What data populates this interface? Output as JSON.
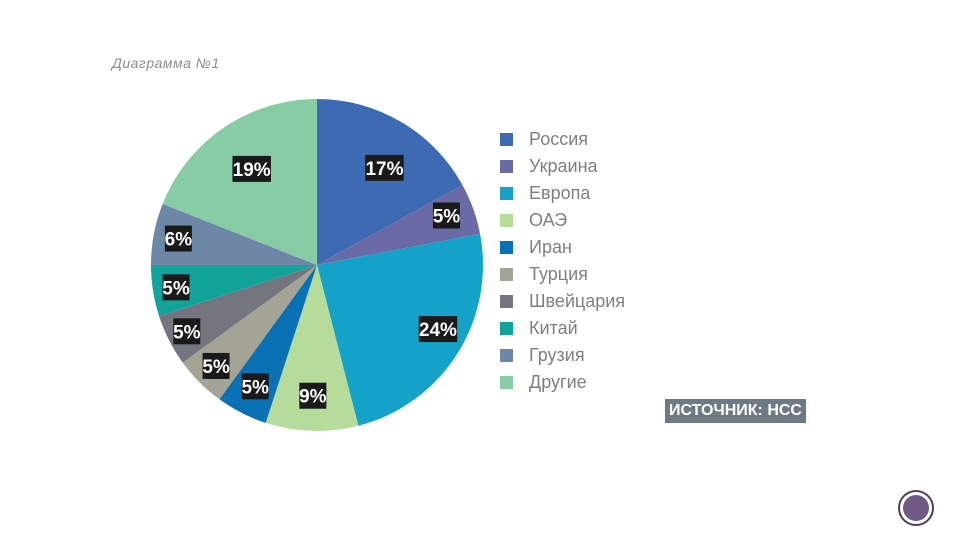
{
  "caption": "Диаграмма №1",
  "source_label": "ИСТОЧНИК: НСС",
  "chart_data": {
    "type": "pie",
    "categories": [
      "Россия",
      "Украина",
      "Европа",
      "ОАЭ",
      "Иран",
      "Турция",
      "Швейцария",
      "Китай",
      "Грузия",
      "Другие"
    ],
    "values": [
      17,
      5,
      24,
      9,
      5,
      5,
      5,
      5,
      6,
      19
    ],
    "labels": [
      "17%",
      "5%",
      "24%",
      "9%",
      "5%",
      "5%",
      "5%",
      "5%",
      "6%",
      "19%"
    ],
    "colors": [
      "#3c6bb4",
      "#6a6ba6",
      "#14a2c8",
      "#b6dc9c",
      "#0a72b4",
      "#a3a396",
      "#75757f",
      "#12a49a",
      "#6e87a6",
      "#88cca6"
    ],
    "start_angle": "12 o'clock",
    "direction": "clockwise",
    "legend_position": "right"
  },
  "decor": {
    "nav_circle_icon": "slide-nav-circle-icon"
  }
}
